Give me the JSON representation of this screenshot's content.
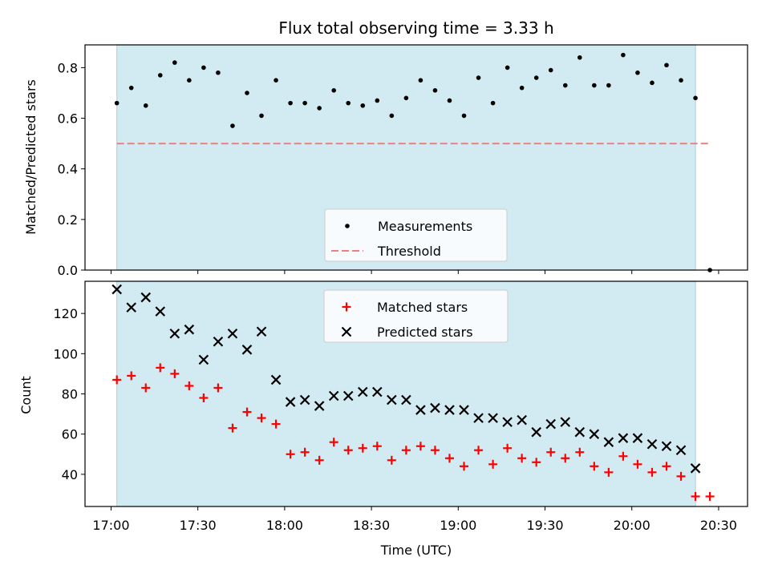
{
  "chart_data": [
    {
      "type": "scatter",
      "title": "Flux total observing time = 3.33 h",
      "xlabel": "",
      "ylabel": "Matched/Predicted stars",
      "ylim": [
        0,
        0.89
      ],
      "yticks": [
        "0.0",
        "0.2",
        "0.4",
        "0.6",
        "0.8"
      ],
      "xlim": [
        "16:51",
        "20:40"
      ],
      "shaded_interval": [
        "17:02",
        "20:22"
      ],
      "shaded_color": "#add8e6",
      "threshold": {
        "name": "Threshold",
        "value": 0.5,
        "x_range": [
          "17:02",
          "20:27"
        ],
        "color": "#f08080"
      },
      "legend": {
        "placement": "bottom-center",
        "entries": [
          "Measurements",
          "Threshold"
        ]
      },
      "series": [
        {
          "name": "Measurements",
          "marker": "dot",
          "color": "#000000",
          "points": [
            [
              "17:02",
              0.66
            ],
            [
              "17:07",
              0.72
            ],
            [
              "17:12",
              0.65
            ],
            [
              "17:17",
              0.77
            ],
            [
              "17:22",
              0.82
            ],
            [
              "17:27",
              0.75
            ],
            [
              "17:32",
              0.8
            ],
            [
              "17:37",
              0.78
            ],
            [
              "17:42",
              0.57
            ],
            [
              "17:47",
              0.7
            ],
            [
              "17:52",
              0.61
            ],
            [
              "17:57",
              0.75
            ],
            [
              "18:02",
              0.66
            ],
            [
              "18:07",
              0.66
            ],
            [
              "18:12",
              0.64
            ],
            [
              "18:17",
              0.71
            ],
            [
              "18:22",
              0.66
            ],
            [
              "18:27",
              0.65
            ],
            [
              "18:32",
              0.67
            ],
            [
              "18:37",
              0.61
            ],
            [
              "18:42",
              0.68
            ],
            [
              "18:47",
              0.75
            ],
            [
              "18:52",
              0.71
            ],
            [
              "18:57",
              0.67
            ],
            [
              "19:02",
              0.61
            ],
            [
              "19:07",
              0.76
            ],
            [
              "19:12",
              0.66
            ],
            [
              "19:17",
              0.8
            ],
            [
              "19:22",
              0.72
            ],
            [
              "19:27",
              0.76
            ],
            [
              "19:32",
              0.79
            ],
            [
              "19:37",
              0.73
            ],
            [
              "19:42",
              0.84
            ],
            [
              "19:47",
              0.73
            ],
            [
              "19:52",
              0.73
            ],
            [
              "19:57",
              0.85
            ],
            [
              "20:02",
              0.78
            ],
            [
              "20:07",
              0.74
            ],
            [
              "20:12",
              0.81
            ],
            [
              "20:17",
              0.75
            ],
            [
              "20:22",
              0.68
            ],
            [
              "20:27",
              0.0
            ]
          ]
        }
      ]
    },
    {
      "type": "scatter",
      "title": "",
      "xlabel": "Time (UTC)",
      "ylabel": "Count",
      "ylim": [
        24,
        136
      ],
      "yticks": [
        "40",
        "60",
        "80",
        "100",
        "120"
      ],
      "xlim": [
        "16:51",
        "20:40"
      ],
      "xticks": [
        "17:00",
        "17:30",
        "18:00",
        "18:30",
        "19:00",
        "19:30",
        "20:00",
        "20:30"
      ],
      "shaded_interval": [
        "17:02",
        "20:22"
      ],
      "shaded_color": "#add8e6",
      "legend": {
        "placement": "top-center",
        "entries": [
          "Matched stars",
          "Predicted stars"
        ]
      },
      "series": [
        {
          "name": "Matched stars",
          "marker": "plus",
          "color": "#ff0000",
          "points": [
            [
              "17:02",
              87
            ],
            [
              "17:07",
              89
            ],
            [
              "17:12",
              83
            ],
            [
              "17:17",
              93
            ],
            [
              "17:22",
              90
            ],
            [
              "17:27",
              84
            ],
            [
              "17:32",
              78
            ],
            [
              "17:37",
              83
            ],
            [
              "17:42",
              63
            ],
            [
              "17:47",
              71
            ],
            [
              "17:52",
              68
            ],
            [
              "17:57",
              65
            ],
            [
              "18:02",
              50
            ],
            [
              "18:07",
              51
            ],
            [
              "18:12",
              47
            ],
            [
              "18:17",
              56
            ],
            [
              "18:22",
              52
            ],
            [
              "18:27",
              53
            ],
            [
              "18:32",
              54
            ],
            [
              "18:37",
              47
            ],
            [
              "18:42",
              52
            ],
            [
              "18:47",
              54
            ],
            [
              "18:52",
              52
            ],
            [
              "18:57",
              48
            ],
            [
              "19:02",
              44
            ],
            [
              "19:07",
              52
            ],
            [
              "19:12",
              45
            ],
            [
              "19:17",
              53
            ],
            [
              "19:22",
              48
            ],
            [
              "19:27",
              46
            ],
            [
              "19:32",
              51
            ],
            [
              "19:37",
              48
            ],
            [
              "19:42",
              51
            ],
            [
              "19:47",
              44
            ],
            [
              "19:52",
              41
            ],
            [
              "19:57",
              49
            ],
            [
              "20:02",
              45
            ],
            [
              "20:07",
              41
            ],
            [
              "20:12",
              44
            ],
            [
              "20:17",
              39
            ],
            [
              "20:22",
              29
            ],
            [
              "20:27",
              29
            ]
          ]
        },
        {
          "name": "Predicted stars",
          "marker": "x",
          "color": "#000000",
          "points": [
            [
              "17:02",
              132
            ],
            [
              "17:07",
              123
            ],
            [
              "17:12",
              128
            ],
            [
              "17:17",
              121
            ],
            [
              "17:22",
              110
            ],
            [
              "17:27",
              112
            ],
            [
              "17:32",
              97
            ],
            [
              "17:37",
              106
            ],
            [
              "17:42",
              110
            ],
            [
              "17:47",
              102
            ],
            [
              "17:52",
              111
            ],
            [
              "17:57",
              87
            ],
            [
              "18:02",
              76
            ],
            [
              "18:07",
              77
            ],
            [
              "18:12",
              74
            ],
            [
              "18:17",
              79
            ],
            [
              "18:22",
              79
            ],
            [
              "18:27",
              81
            ],
            [
              "18:32",
              81
            ],
            [
              "18:37",
              77
            ],
            [
              "18:42",
              77
            ],
            [
              "18:47",
              72
            ],
            [
              "18:52",
              73
            ],
            [
              "18:57",
              72
            ],
            [
              "19:02",
              72
            ],
            [
              "19:07",
              68
            ],
            [
              "19:12",
              68
            ],
            [
              "19:17",
              66
            ],
            [
              "19:22",
              67
            ],
            [
              "19:27",
              61
            ],
            [
              "19:32",
              65
            ],
            [
              "19:37",
              66
            ],
            [
              "19:42",
              61
            ],
            [
              "19:47",
              60
            ],
            [
              "19:52",
              56
            ],
            [
              "19:57",
              58
            ],
            [
              "20:02",
              58
            ],
            [
              "20:07",
              55
            ],
            [
              "20:12",
              54
            ],
            [
              "20:17",
              52
            ],
            [
              "20:22",
              43
            ]
          ]
        }
      ]
    }
  ]
}
